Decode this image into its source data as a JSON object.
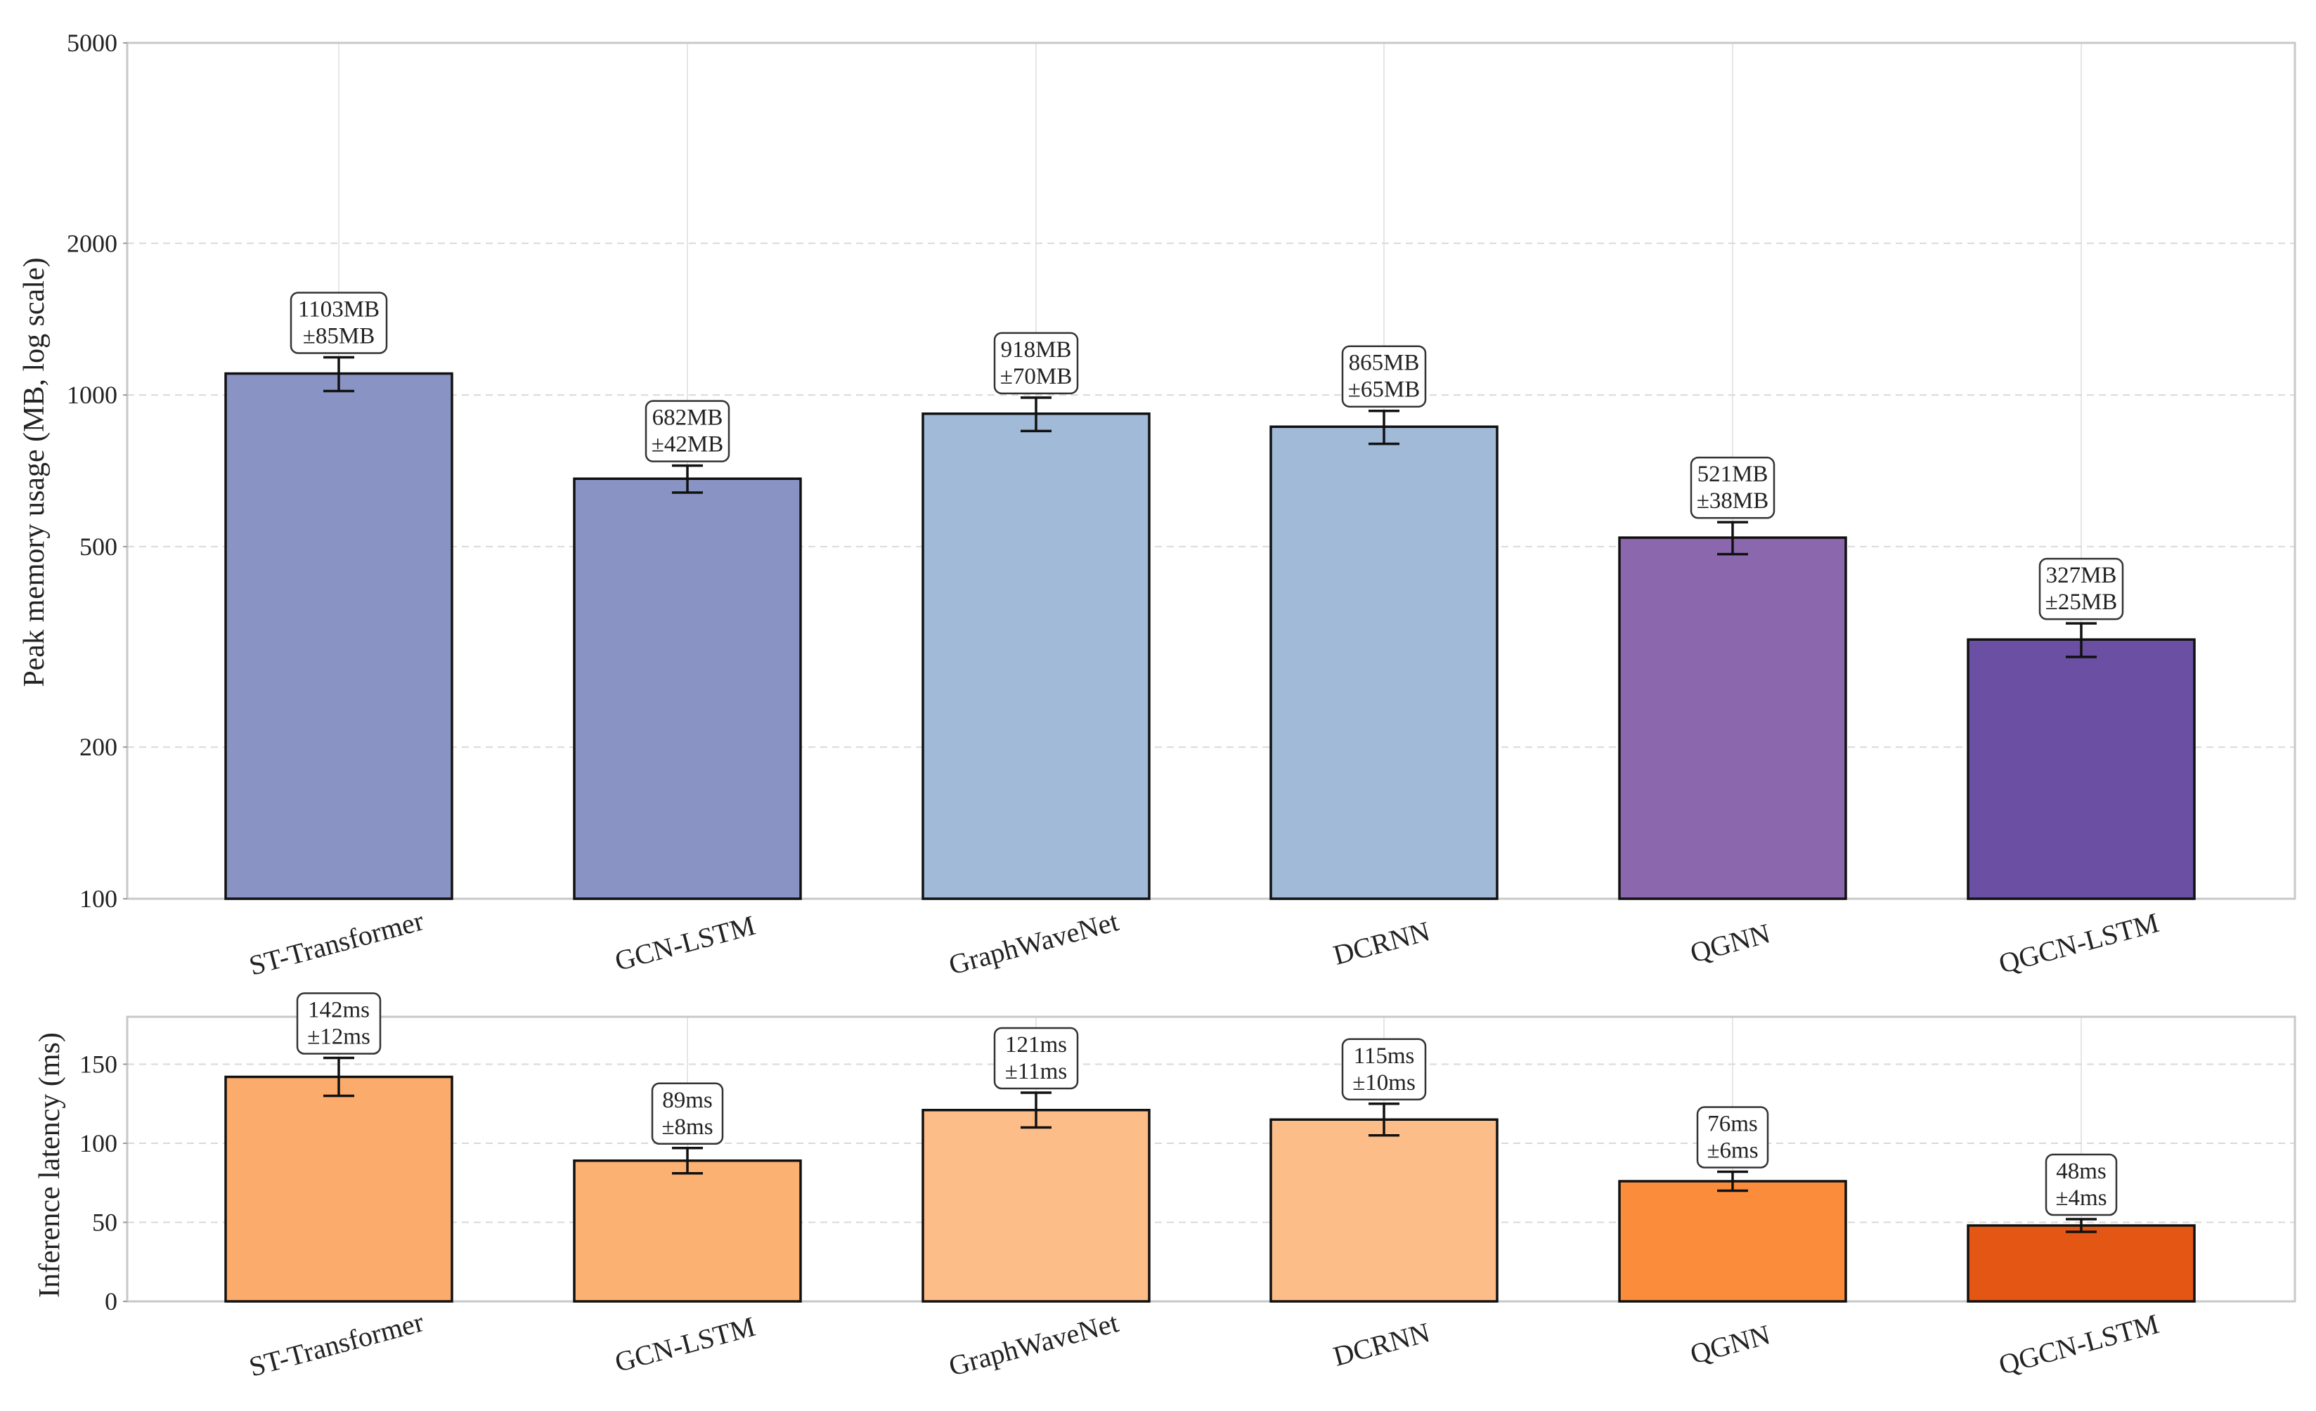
{
  "chart_data": [
    {
      "type": "bar",
      "categories": [
        "ST-Transformer",
        "GCN-LSTM",
        "GraphWaveNet",
        "DCRNN",
        "QGNN",
        "QGCN-LSTM"
      ],
      "values": [
        1103,
        682,
        918,
        865,
        521,
        327
      ],
      "errors": [
        85,
        42,
        70,
        65,
        38,
        25
      ],
      "labels": [
        [
          "1103MB",
          "±85MB"
        ],
        [
          "682MB",
          "±42MB"
        ],
        [
          "918MB",
          "±70MB"
        ],
        [
          "865MB",
          "±65MB"
        ],
        [
          "521MB",
          "±38MB"
        ],
        [
          "327MB",
          "±25MB"
        ]
      ],
      "colors": [
        "#8a94c4",
        "#8a94c4",
        "#a0bad8",
        "#a0bad8",
        "#8b68ae",
        "#6a4fa2"
      ],
      "ylabel": "Peak memory usage (MB, log scale)",
      "yscale": "log",
      "ylim": [
        100,
        5000
      ],
      "yticks": [
        100,
        200,
        500,
        1000,
        2000,
        5000
      ],
      "grid": true
    },
    {
      "type": "bar",
      "categories": [
        "ST-Transformer",
        "GCN-LSTM",
        "GraphWaveNet",
        "DCRNN",
        "QGNN",
        "QGCN-LSTM"
      ],
      "values": [
        142,
        89,
        121,
        115,
        76,
        48
      ],
      "errors": [
        12,
        8,
        11,
        10,
        6,
        4
      ],
      "labels": [
        [
          "142ms",
          "±12ms"
        ],
        [
          "89ms",
          "±8ms"
        ],
        [
          "121ms",
          "±11ms"
        ],
        [
          "115ms",
          "±10ms"
        ],
        [
          "76ms",
          "±6ms"
        ],
        [
          "48ms",
          "±4ms"
        ]
      ],
      "colors": [
        "#fbac6c",
        "#fbb171",
        "#fcbd88",
        "#fcbd88",
        "#fb8c3c",
        "#e45613"
      ],
      "ylabel": "Inference latency (ms)",
      "yscale": "linear",
      "ylim": [
        0,
        180
      ],
      "yticks": [
        0,
        50,
        100,
        150
      ],
      "grid": true
    }
  ]
}
